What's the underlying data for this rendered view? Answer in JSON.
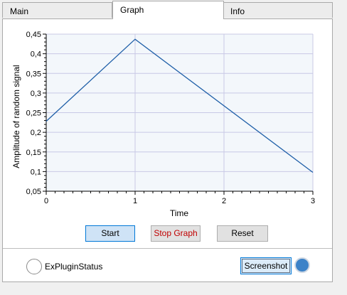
{
  "tabs": [
    {
      "label": "Main"
    },
    {
      "label": "Graph"
    },
    {
      "label": "Info"
    }
  ],
  "chart_data": {
    "type": "line",
    "title": "",
    "xlabel": "Time",
    "ylabel": "Amplitude of random signal",
    "xlim": [
      0,
      3
    ],
    "ylim": [
      0.05,
      0.45
    ],
    "x_ticks": [
      "0",
      "1",
      "2",
      "3"
    ],
    "y_ticks": [
      "0,05",
      "0,1",
      "0,15",
      "0,2",
      "0,25",
      "0,3",
      "0,35",
      "0,4",
      "0,45"
    ],
    "grid": true,
    "series": [
      {
        "x": [
          0,
          1,
          3
        ],
        "y": [
          0.228,
          0.437,
          0.098
        ],
        "color": "#1f5fa8"
      }
    ]
  },
  "buttons": {
    "start": "Start",
    "stop": "Stop Graph",
    "reset": "Reset"
  },
  "status": {
    "label": "ExPluginStatus"
  },
  "screenshot": {
    "label": "Screenshot"
  },
  "colors": {
    "plot_background": "#f3f7fb",
    "grid": "#c8c8e6",
    "line": "#1f5fa8",
    "indicator": "#3c82c8",
    "stop_text": "#c00000"
  }
}
